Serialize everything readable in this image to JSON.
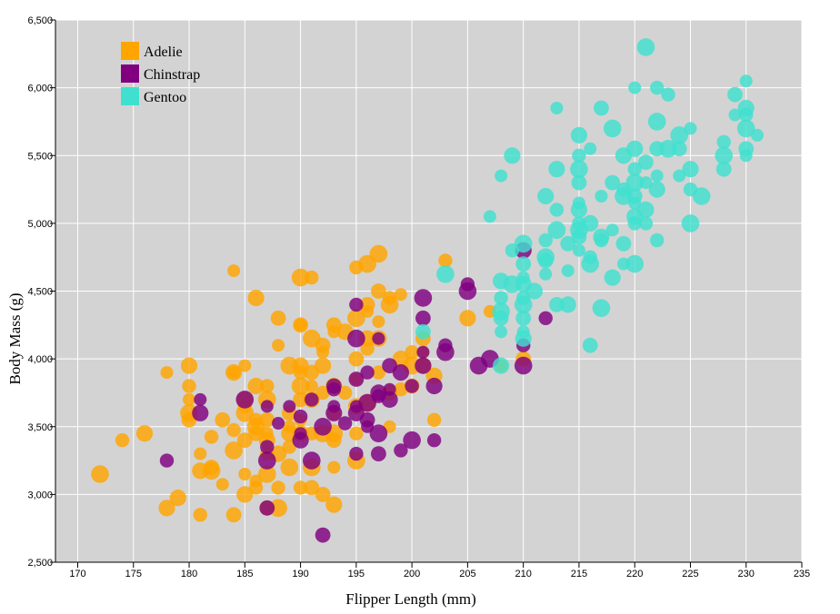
{
  "chart_data": {
    "type": "scatter",
    "title": "",
    "xlabel": "Flipper Length (mm)",
    "ylabel": "Body Mass (g)",
    "xlim": [
      168,
      235
    ],
    "ylim": [
      2500,
      6500
    ],
    "xticks": [
      170,
      175,
      180,
      185,
      190,
      195,
      200,
      205,
      210,
      215,
      220,
      225,
      230,
      235
    ],
    "yticks": [
      2500,
      3000,
      3500,
      4000,
      4500,
      5000,
      5500,
      6000,
      6500
    ],
    "xtick_labels": [
      "170",
      "175",
      "180",
      "185",
      "190",
      "195",
      "200",
      "205",
      "210",
      "215",
      "220",
      "225",
      "230",
      "235"
    ],
    "ytick_labels": [
      "2,500",
      "3,000",
      "3,500",
      "4,000",
      "4,500",
      "5,000",
      "5,500",
      "6,000",
      "6,500"
    ],
    "background": "#d3d3d3",
    "grid": true,
    "legend": "top-left",
    "series": [
      {
        "name": "Adelie",
        "color": "#ffa500",
        "points": [
          [
            172,
            3150
          ],
          [
            174,
            3400
          ],
          [
            176,
            3450
          ],
          [
            178,
            3900
          ],
          [
            178,
            2900
          ],
          [
            179,
            2975
          ],
          [
            180,
            3950
          ],
          [
            180,
            3800
          ],
          [
            180,
            3600
          ],
          [
            180,
            3550
          ],
          [
            180,
            3700
          ],
          [
            181,
            3300
          ],
          [
            181,
            3175
          ],
          [
            181,
            2850
          ],
          [
            182,
            3425
          ],
          [
            182,
            3175
          ],
          [
            182,
            3200
          ],
          [
            183,
            3550
          ],
          [
            183,
            3075
          ],
          [
            184,
            3900
          ],
          [
            184,
            3900
          ],
          [
            184,
            3475
          ],
          [
            184,
            3325
          ],
          [
            184,
            2850
          ],
          [
            184,
            4650
          ],
          [
            185,
            3950
          ],
          [
            185,
            3700
          ],
          [
            185,
            3650
          ],
          [
            185,
            3600
          ],
          [
            185,
            3400
          ],
          [
            185,
            3150
          ],
          [
            185,
            3000
          ],
          [
            186,
            3800
          ],
          [
            186,
            3550
          ],
          [
            186,
            3500
          ],
          [
            186,
            3450
          ],
          [
            186,
            3100
          ],
          [
            186,
            4450
          ],
          [
            186,
            3050
          ],
          [
            187,
            3800
          ],
          [
            187,
            3700
          ],
          [
            187,
            3550
          ],
          [
            187,
            3450
          ],
          [
            187,
            3400
          ],
          [
            187,
            3300
          ],
          [
            187,
            3150
          ],
          [
            187,
            2900
          ],
          [
            188,
            4300
          ],
          [
            188,
            4100
          ],
          [
            188,
            3300
          ],
          [
            188,
            3050
          ],
          [
            188,
            2900
          ],
          [
            189,
            3950
          ],
          [
            189,
            3600
          ],
          [
            189,
            3500
          ],
          [
            189,
            3450
          ],
          [
            189,
            3350
          ],
          [
            189,
            3200
          ],
          [
            190,
            4600
          ],
          [
            190,
            4250
          ],
          [
            190,
            4250
          ],
          [
            190,
            3950
          ],
          [
            190,
            3900
          ],
          [
            190,
            3800
          ],
          [
            190,
            3700
          ],
          [
            190,
            3550
          ],
          [
            190,
            3450
          ],
          [
            190,
            3050
          ],
          [
            191,
            4600
          ],
          [
            191,
            4150
          ],
          [
            191,
            3900
          ],
          [
            191,
            3800
          ],
          [
            191,
            3700
          ],
          [
            191,
            3450
          ],
          [
            191,
            3200
          ],
          [
            191,
            3050
          ],
          [
            192,
            4100
          ],
          [
            192,
            4050
          ],
          [
            192,
            3950
          ],
          [
            192,
            3750
          ],
          [
            192,
            3450
          ],
          [
            192,
            3000
          ],
          [
            193,
            4250
          ],
          [
            193,
            4200
          ],
          [
            193,
            3800
          ],
          [
            193,
            3600
          ],
          [
            193,
            3450
          ],
          [
            193,
            3400
          ],
          [
            193,
            3200
          ],
          [
            193,
            2925
          ],
          [
            194,
            4200
          ],
          [
            194,
            3750
          ],
          [
            195,
            4675
          ],
          [
            195,
            4300
          ],
          [
            195,
            4000
          ],
          [
            195,
            3850
          ],
          [
            195,
            3650
          ],
          [
            195,
            3450
          ],
          [
            195,
            3250
          ],
          [
            196,
            4700
          ],
          [
            196,
            4400
          ],
          [
            196,
            4350
          ],
          [
            196,
            4150
          ],
          [
            196,
            4075
          ],
          [
            196,
            3675
          ],
          [
            197,
            4775
          ],
          [
            197,
            4500
          ],
          [
            197,
            4275
          ],
          [
            197,
            4150
          ],
          [
            197,
            3900
          ],
          [
            198,
            4450
          ],
          [
            198,
            4400
          ],
          [
            198,
            3750
          ],
          [
            198,
            3500
          ],
          [
            199,
            4475
          ],
          [
            199,
            4000
          ],
          [
            199,
            3775
          ],
          [
            200,
            4050
          ],
          [
            200,
            3950
          ],
          [
            200,
            3800
          ],
          [
            201,
            4150
          ],
          [
            201,
            4050
          ],
          [
            201,
            3950
          ],
          [
            202,
            3875
          ],
          [
            202,
            3550
          ],
          [
            203,
            4725
          ],
          [
            205,
            4300
          ],
          [
            207,
            4350
          ],
          [
            208,
            3950
          ],
          [
            210,
            4000
          ]
        ]
      },
      {
        "name": "Chinstrap",
        "color": "#800080",
        "points": [
          [
            178,
            3250
          ],
          [
            181,
            3700
          ],
          [
            181,
            3600
          ],
          [
            185,
            3700
          ],
          [
            187,
            3350
          ],
          [
            187,
            3250
          ],
          [
            187,
            2900
          ],
          [
            187,
            3650
          ],
          [
            188,
            3525
          ],
          [
            189,
            3650
          ],
          [
            190,
            3450
          ],
          [
            190,
            3400
          ],
          [
            190,
            3575
          ],
          [
            191,
            3700
          ],
          [
            191,
            3250
          ],
          [
            192,
            3500
          ],
          [
            192,
            2700
          ],
          [
            193,
            3800
          ],
          [
            193,
            3650
          ],
          [
            193,
            3600
          ],
          [
            193,
            3775
          ],
          [
            194,
            3525
          ],
          [
            195,
            4400
          ],
          [
            195,
            4150
          ],
          [
            195,
            3850
          ],
          [
            195,
            3650
          ],
          [
            195,
            3600
          ],
          [
            195,
            3300
          ],
          [
            196,
            3900
          ],
          [
            196,
            3675
          ],
          [
            196,
            3550
          ],
          [
            196,
            3500
          ],
          [
            197,
            4150
          ],
          [
            197,
            3750
          ],
          [
            197,
            3725
          ],
          [
            197,
            3450
          ],
          [
            197,
            3300
          ],
          [
            198,
            3950
          ],
          [
            198,
            3775
          ],
          [
            198,
            3700
          ],
          [
            199,
            3900
          ],
          [
            199,
            3325
          ],
          [
            200,
            3800
          ],
          [
            200,
            3400
          ],
          [
            201,
            4450
          ],
          [
            201,
            4300
          ],
          [
            201,
            4050
          ],
          [
            201,
            3950
          ],
          [
            202,
            3800
          ],
          [
            202,
            3400
          ],
          [
            203,
            4100
          ],
          [
            203,
            4050
          ],
          [
            205,
            4550
          ],
          [
            205,
            4500
          ],
          [
            206,
            3950
          ],
          [
            207,
            4000
          ],
          [
            210,
            4800
          ],
          [
            210,
            4100
          ],
          [
            210,
            3950
          ],
          [
            212,
            4300
          ]
        ]
      },
      {
        "name": "Gentoo",
        "color": "#40e0d0",
        "points": [
          [
            201,
            4200
          ],
          [
            203,
            4625
          ],
          [
            207,
            5050
          ],
          [
            208,
            5350
          ],
          [
            208,
            4575
          ],
          [
            208,
            4450
          ],
          [
            208,
            4350
          ],
          [
            208,
            4300
          ],
          [
            208,
            4200
          ],
          [
            208,
            3950
          ],
          [
            209,
            5500
          ],
          [
            209,
            4800
          ],
          [
            209,
            4550
          ],
          [
            210,
            4850
          ],
          [
            210,
            4700
          ],
          [
            210,
            4600
          ],
          [
            210,
            4550
          ],
          [
            210,
            4450
          ],
          [
            210,
            4400
          ],
          [
            210,
            4300
          ],
          [
            210,
            4200
          ],
          [
            210,
            4150
          ],
          [
            211,
            4500
          ],
          [
            212,
            5200
          ],
          [
            212,
            4875
          ],
          [
            212,
            4750
          ],
          [
            212,
            4725
          ],
          [
            212,
            4625
          ],
          [
            213,
            5850
          ],
          [
            213,
            5400
          ],
          [
            213,
            5100
          ],
          [
            213,
            4950
          ],
          [
            213,
            4400
          ],
          [
            214,
            4850
          ],
          [
            214,
            4650
          ],
          [
            214,
            4400
          ],
          [
            215,
            5650
          ],
          [
            215,
            5500
          ],
          [
            215,
            5400
          ],
          [
            215,
            5300
          ],
          [
            215,
            5150
          ],
          [
            215,
            5100
          ],
          [
            215,
            5000
          ],
          [
            215,
            4950
          ],
          [
            215,
            4900
          ],
          [
            215,
            4800
          ],
          [
            216,
            5550
          ],
          [
            216,
            5000
          ],
          [
            216,
            4750
          ],
          [
            216,
            4700
          ],
          [
            216,
            4100
          ],
          [
            217,
            5850
          ],
          [
            217,
            5200
          ],
          [
            217,
            4900
          ],
          [
            217,
            4875
          ],
          [
            217,
            4375
          ],
          [
            218,
            5700
          ],
          [
            218,
            5300
          ],
          [
            218,
            4950
          ],
          [
            218,
            4600
          ],
          [
            219,
            5500
          ],
          [
            219,
            5250
          ],
          [
            219,
            5200
          ],
          [
            219,
            4850
          ],
          [
            219,
            4700
          ],
          [
            220,
            6000
          ],
          [
            220,
            5550
          ],
          [
            220,
            5400
          ],
          [
            220,
            5300
          ],
          [
            220,
            5200
          ],
          [
            220,
            5150
          ],
          [
            220,
            5050
          ],
          [
            220,
            5000
          ],
          [
            220,
            4700
          ],
          [
            221,
            6300
          ],
          [
            221,
            5450
          ],
          [
            221,
            5300
          ],
          [
            221,
            5100
          ],
          [
            221,
            5000
          ],
          [
            222,
            6000
          ],
          [
            222,
            5750
          ],
          [
            222,
            5550
          ],
          [
            222,
            5350
          ],
          [
            222,
            5250
          ],
          [
            222,
            4875
          ],
          [
            223,
            5950
          ],
          [
            223,
            5550
          ],
          [
            224,
            5650
          ],
          [
            224,
            5550
          ],
          [
            224,
            5350
          ],
          [
            225,
            5700
          ],
          [
            225,
            5400
          ],
          [
            225,
            5250
          ],
          [
            225,
            5000
          ],
          [
            226,
            5200
          ],
          [
            228,
            5600
          ],
          [
            228,
            5500
          ],
          [
            228,
            5400
          ],
          [
            229,
            5950
          ],
          [
            229,
            5800
          ],
          [
            230,
            6050
          ],
          [
            230,
            5850
          ],
          [
            230,
            5800
          ],
          [
            230,
            5700
          ],
          [
            230,
            5550
          ],
          [
            230,
            5500
          ],
          [
            231,
            5650
          ]
        ]
      }
    ]
  }
}
